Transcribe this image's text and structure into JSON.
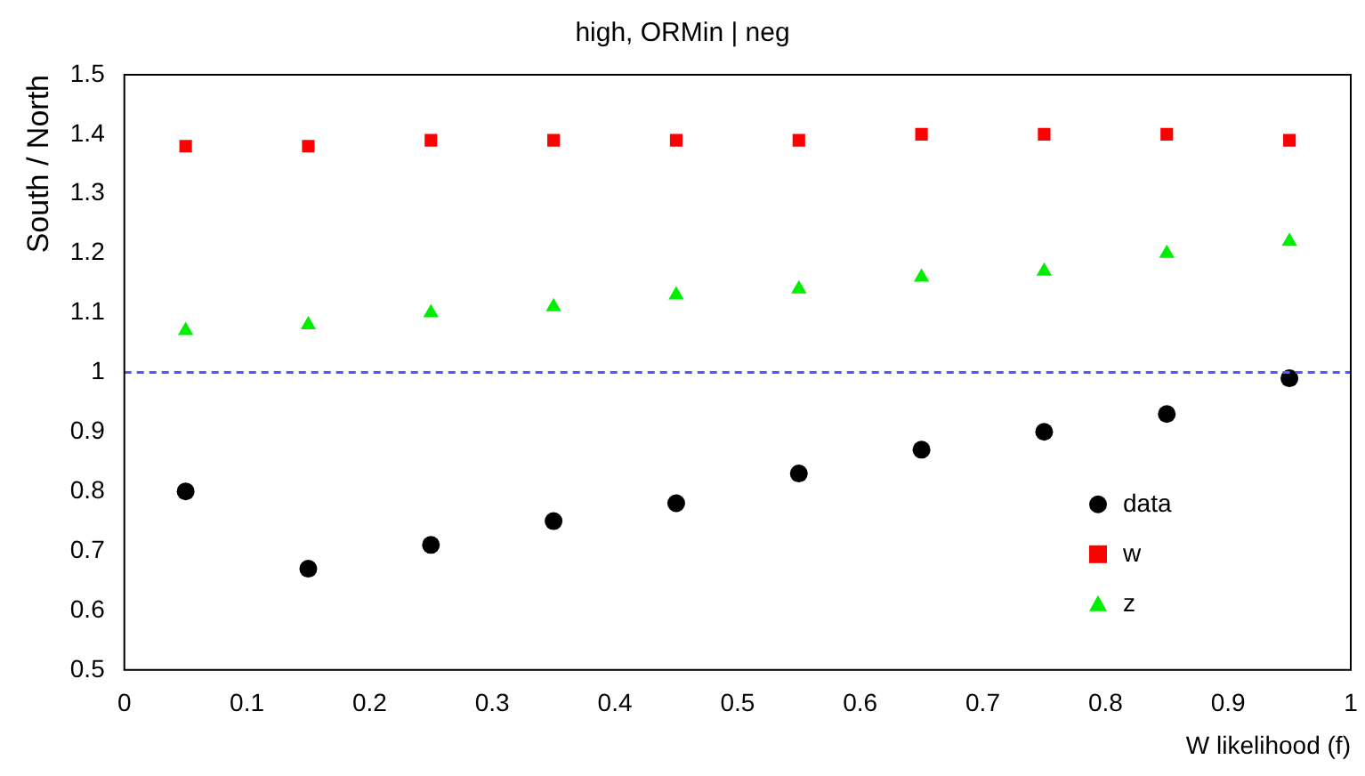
{
  "chart_data": {
    "type": "scatter",
    "title": "high, ORMin | neg",
    "xlabel": "W likelihood (f)",
    "ylabel": "South / North",
    "x": [
      0.05,
      0.15,
      0.25,
      0.35,
      0.45,
      0.55,
      0.65,
      0.75,
      0.85,
      0.95
    ],
    "series": [
      {
        "name": "data",
        "color": "#000000",
        "marker": "circle",
        "values": [
          0.8,
          0.67,
          0.71,
          0.75,
          0.78,
          0.83,
          0.87,
          0.9,
          0.93,
          0.99
        ]
      },
      {
        "name": "w",
        "color": "#ff0000",
        "marker": "square",
        "values": [
          1.38,
          1.38,
          1.39,
          1.39,
          1.39,
          1.39,
          1.4,
          1.4,
          1.4,
          1.39
        ]
      },
      {
        "name": "z",
        "color": "#00ee00",
        "marker": "triangle",
        "values": [
          1.07,
          1.08,
          1.1,
          1.11,
          1.13,
          1.14,
          1.16,
          1.17,
          1.2,
          1.22
        ]
      }
    ],
    "xlim": [
      0,
      1
    ],
    "xticks": [
      0,
      0.1,
      0.2,
      0.3,
      0.4,
      0.5,
      0.6,
      0.7,
      0.8,
      0.9,
      1
    ],
    "ylim": [
      0.5,
      1.5
    ],
    "yticks": [
      0.5,
      0.6,
      0.7,
      0.8,
      0.9,
      1,
      1.1,
      1.2,
      1.3,
      1.4,
      1.5
    ],
    "ref_lines": [
      {
        "axis": "y",
        "value": 1,
        "color": "#5555ff",
        "line_style": "dashed"
      }
    ],
    "legend": "bottom right",
    "grid": false
  }
}
